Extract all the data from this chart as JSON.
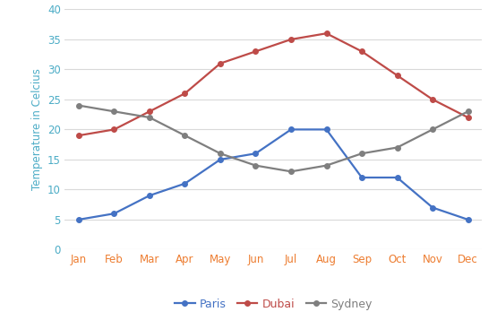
{
  "months": [
    "Jan",
    "Feb",
    "Mar",
    "Apr",
    "May",
    "Jun",
    "Jul",
    "Aug",
    "Sep",
    "Oct",
    "Nov",
    "Dec"
  ],
  "paris": [
    5,
    6,
    9,
    11,
    15,
    16,
    20,
    20,
    12,
    12,
    7,
    5
  ],
  "dubai": [
    19,
    20,
    23,
    26,
    31,
    33,
    35,
    36,
    33,
    29,
    25,
    22
  ],
  "sydney": [
    24,
    23,
    22,
    19,
    16,
    14,
    13,
    14,
    16,
    17,
    20,
    23
  ],
  "paris_color": "#4472C4",
  "dubai_color": "#BE4B48",
  "sydney_color": "#7F7F7F",
  "xticklabel_color": "#ED7D31",
  "yticklabel_color": "#4BACC6",
  "ylabel": "Temperature in Celcius",
  "ylabel_color": "#4BACC6",
  "ylim": [
    0,
    40
  ],
  "yticks": [
    0,
    5,
    10,
    15,
    20,
    25,
    30,
    35,
    40
  ],
  "legend_labels": [
    "Paris",
    "Dubai",
    "Sydney"
  ],
  "legend_text_colors": [
    "#4472C4",
    "#BE4B48",
    "#7F7F7F"
  ],
  "marker": "o",
  "linewidth": 1.6,
  "markersize": 4,
  "grid_color": "#D9D9D9",
  "background_color": "#FFFFFF",
  "plot_bg_color": "#FFFFFF"
}
